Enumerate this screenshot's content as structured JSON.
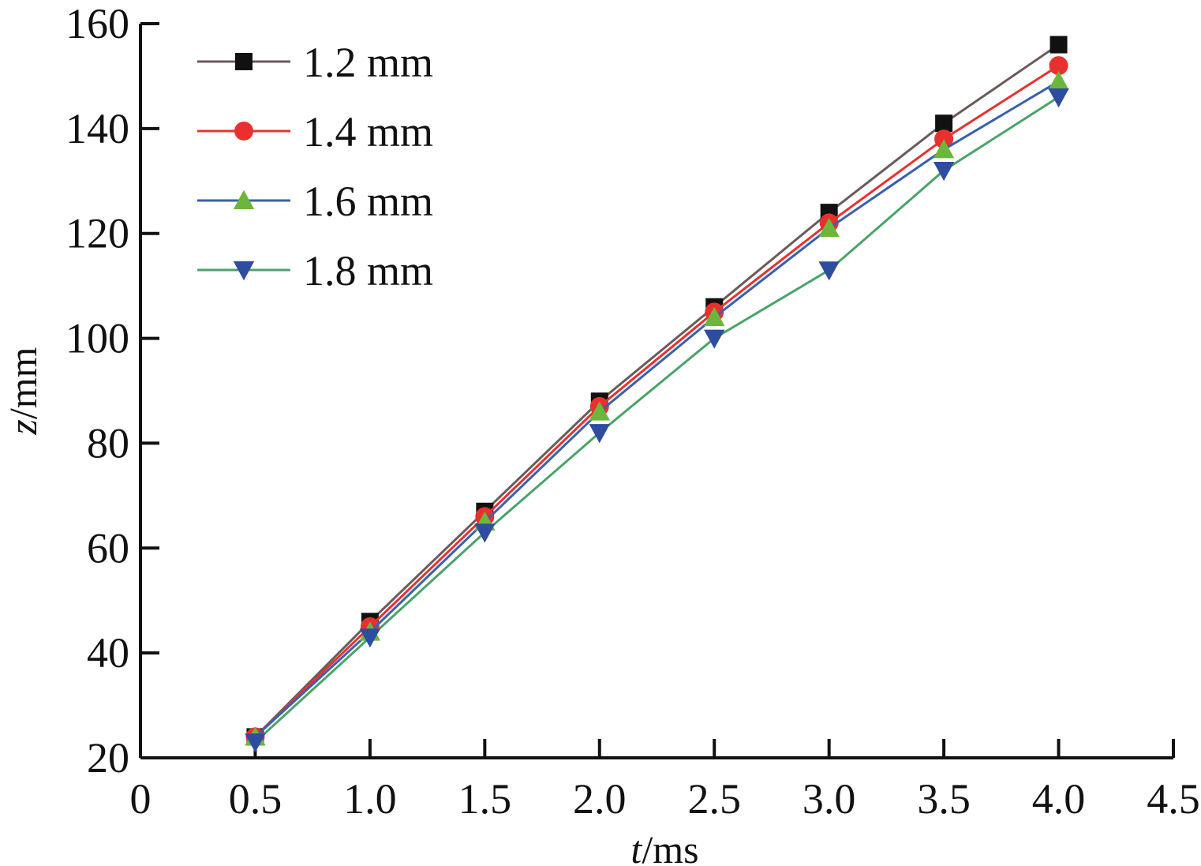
{
  "chart_data": {
    "type": "line",
    "xlabel": {
      "italic": "t",
      "rest": "/ms"
    },
    "ylabel": {
      "italic": "z",
      "rest": "/mm"
    },
    "xlim": [
      0,
      4.5
    ],
    "ylim": [
      20,
      160
    ],
    "x_ticks": [
      "0",
      "0.5",
      "1.0",
      "1.5",
      "2.0",
      "2.5",
      "3.0",
      "3.5",
      "4.0",
      "4.5"
    ],
    "y_ticks": [
      "20",
      "40",
      "60",
      "80",
      "100",
      "120",
      "140",
      "160"
    ],
    "x": [
      0.5,
      1.0,
      1.5,
      2.0,
      2.5,
      3.0,
      3.5,
      4.0
    ],
    "grid": false,
    "legend_position": "top-left",
    "series": [
      {
        "name": "1.2 mm",
        "values": [
          24,
          46,
          67,
          88,
          106,
          124,
          141,
          156
        ],
        "line_color": "#6b5a5a",
        "marker_color": "#111111",
        "marker": "square"
      },
      {
        "name": "1.4 mm",
        "values": [
          24,
          45,
          66,
          87,
          105,
          122,
          138,
          152
        ],
        "line_color": "#e8312f",
        "marker_color": "#e8312f",
        "marker": "circle"
      },
      {
        "name": "1.6 mm",
        "values": [
          24,
          44,
          65,
          86,
          104,
          121,
          136,
          149
        ],
        "line_color": "#3a5fae",
        "marker_color": "#6cb63c",
        "marker": "triangle-up"
      },
      {
        "name": "1.8 mm",
        "values": [
          23,
          43,
          63,
          82,
          100,
          113,
          132,
          146
        ],
        "line_color": "#4aa36a",
        "marker_color": "#2e4da0",
        "marker": "triangle-down"
      }
    ]
  }
}
